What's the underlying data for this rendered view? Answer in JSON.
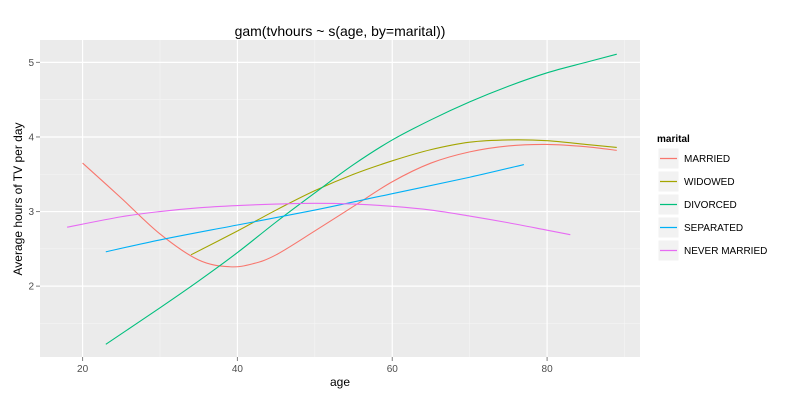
{
  "chart_data": {
    "type": "line",
    "title": "gam(tvhours ~ s(age, by=marital))",
    "xlabel": "age",
    "ylabel": "Average hours of TV per day",
    "xlim": [
      14.5,
      92
    ],
    "ylim": [
      1.05,
      5.3
    ],
    "x_ticks": [
      20,
      40,
      60,
      80
    ],
    "y_ticks": [
      2,
      3,
      4,
      5
    ],
    "grid": true,
    "legend_title": "marital",
    "legend_position": "right",
    "series": [
      {
        "name": "MARRIED",
        "color": "#f8766d",
        "x": [
          20,
          25,
          30,
          35,
          39,
          42,
          45,
          50,
          55,
          60,
          65,
          70,
          75,
          80,
          85,
          89
        ],
        "y": [
          3.65,
          3.18,
          2.7,
          2.35,
          2.26,
          2.3,
          2.42,
          2.74,
          3.07,
          3.4,
          3.65,
          3.8,
          3.88,
          3.9,
          3.87,
          3.82
        ]
      },
      {
        "name": "WIDOWED",
        "color": "#a3a500",
        "x": [
          34,
          40,
          45,
          50,
          55,
          60,
          65,
          70,
          75,
          80,
          85,
          89
        ],
        "y": [
          2.42,
          2.74,
          3.02,
          3.28,
          3.5,
          3.68,
          3.83,
          3.93,
          3.96,
          3.95,
          3.9,
          3.86
        ]
      },
      {
        "name": "DIVORCED",
        "color": "#00bf7d",
        "x": [
          23,
          30,
          35,
          40,
          45,
          50,
          55,
          60,
          65,
          70,
          75,
          80,
          85,
          89
        ],
        "y": [
          1.22,
          1.71,
          2.07,
          2.45,
          2.86,
          3.25,
          3.63,
          3.96,
          4.23,
          4.47,
          4.68,
          4.86,
          5.0,
          5.11
        ]
      },
      {
        "name": "SEPARATED",
        "color": "#00b0f6",
        "x": [
          23,
          30,
          40,
          50,
          60,
          70,
          77
        ],
        "y": [
          2.46,
          2.62,
          2.82,
          3.02,
          3.24,
          3.46,
          3.63
        ]
      },
      {
        "name": "NEVER MARRIED",
        "color": "#e76bf3",
        "x": [
          18,
          25,
          30,
          35,
          40,
          45,
          50,
          55,
          60,
          65,
          70,
          75,
          80,
          83
        ],
        "y": [
          2.79,
          2.93,
          3.0,
          3.05,
          3.08,
          3.1,
          3.11,
          3.1,
          3.07,
          3.02,
          2.94,
          2.85,
          2.75,
          2.69
        ]
      }
    ]
  },
  "colors": {
    "panel_background": "#ebebeb",
    "grid_major": "#ffffff",
    "grid_minor": "#f5f5f5",
    "legend_key_background": "#f2f2f2"
  }
}
